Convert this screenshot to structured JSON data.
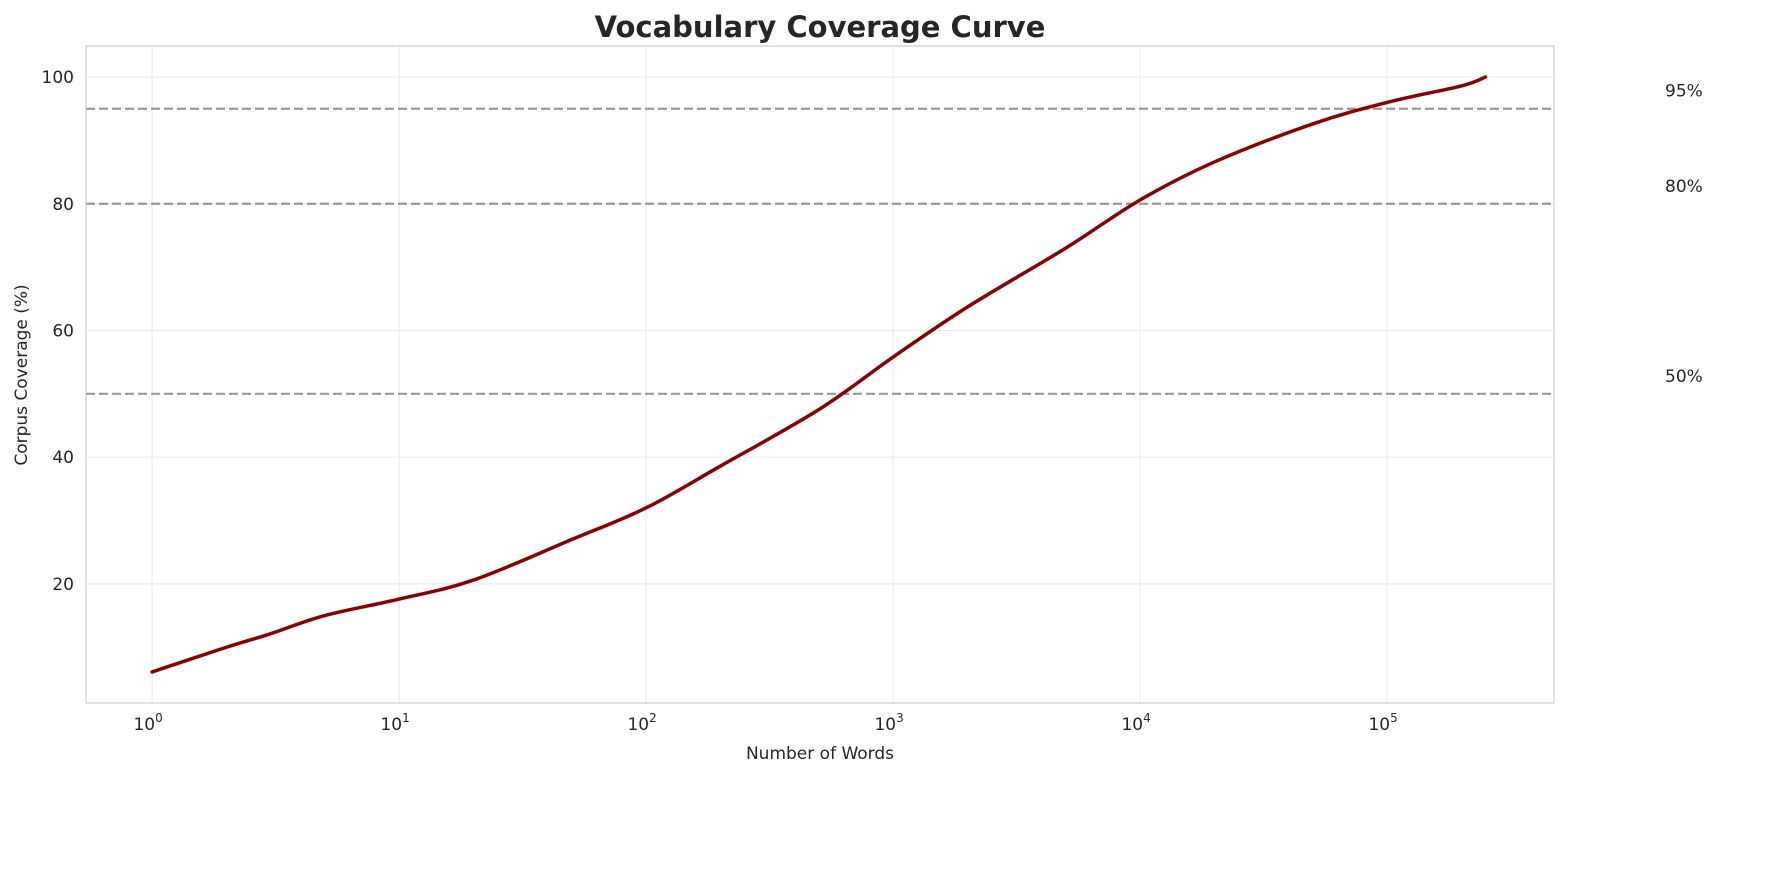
{
  "chart_data": {
    "type": "line",
    "title": "Vocabulary Coverage Curve",
    "xlabel": "Number of Words",
    "ylabel": "Corpus Coverage (%)",
    "xscale": "log",
    "xlim": [
      0.54,
      474000
    ],
    "ylim": [
      1.2,
      104.9
    ],
    "grid": true,
    "x_ticks": [
      {
        "base": "10",
        "exp": "0",
        "value": 1
      },
      {
        "base": "10",
        "exp": "1",
        "value": 10
      },
      {
        "base": "10",
        "exp": "2",
        "value": 100
      },
      {
        "base": "10",
        "exp": "3",
        "value": 1000
      },
      {
        "base": "10",
        "exp": "4",
        "value": 10000
      },
      {
        "base": "10",
        "exp": "5",
        "value": 100000
      }
    ],
    "y_ticks": [
      20,
      40,
      60,
      80,
      100
    ],
    "series": [
      {
        "color": "#8b0000",
        "x": [
          1,
          2,
          3,
          5,
          10,
          20,
          50,
          100,
          200,
          500,
          1000,
          2000,
          5000,
          10000,
          20000,
          50000,
          100000,
          200000,
          250000
        ],
        "y": [
          6.1,
          10,
          12.1,
          15,
          17.6,
          20.6,
          27,
          32,
          38.6,
          47.5,
          55.8,
          63.7,
          73,
          80.6,
          86.6,
          92.6,
          96,
          98.6,
          100
        ]
      }
    ],
    "reference_lines": [
      {
        "y": 95,
        "label": "95%"
      },
      {
        "y": 80,
        "label": "80%"
      },
      {
        "y": 50,
        "label": "50%"
      }
    ],
    "reference_color": "#999999"
  }
}
